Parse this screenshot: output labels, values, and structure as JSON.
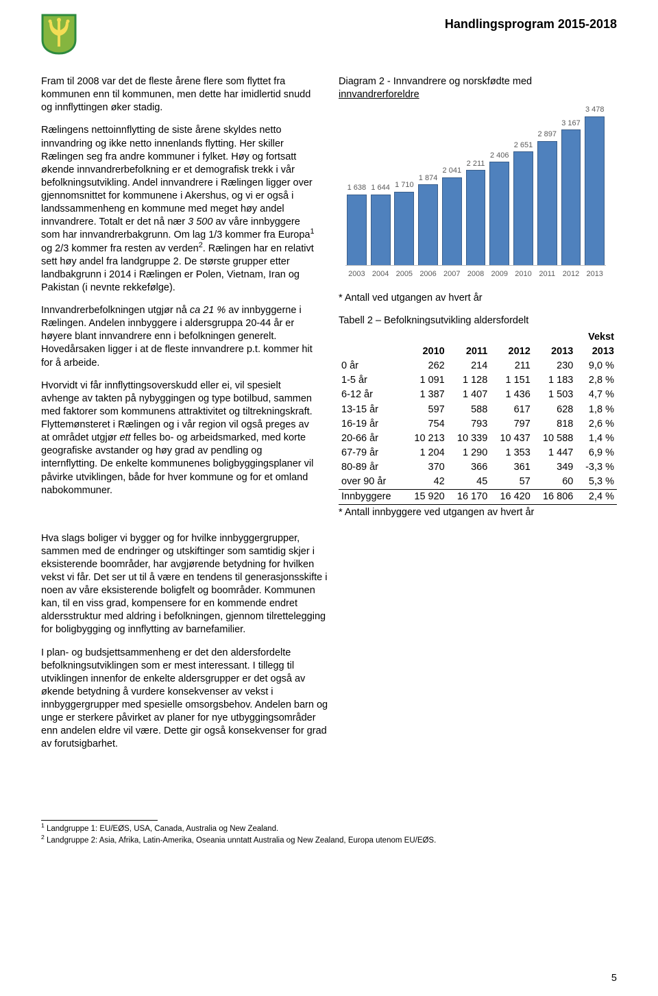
{
  "header": {
    "title": "Handlingsprogram 2015-2018"
  },
  "logo": {
    "shield_fill": "#85b53f",
    "shield_border": "#2c8a3e",
    "trident": "#f3dd55"
  },
  "left_paragraphs": [
    "Fram til 2008 var det de fleste årene flere som flyttet fra kommunen enn til kommunen, men dette har imidlertid snudd og innflyttingen øker stadig.",
    "Rælingens nettoinnflytting de siste årene skyldes netto innvandring og ikke netto innenlands flytting. Her skiller Rælingen seg fra andre kommuner i fylket. Høy og fortsatt økende innvandrerbefolkning er et demografisk trekk i vår befolkningsutvikling. Andel innvandrere i Rælingen ligger over gjennomsnittet for kommunene i Akershus, og vi er også i lands­sammenheng en kommune med meget høy andel innvandrere. Totalt er det nå nær <span class=\"ital\">3 500</span> av våre innbyggere som har innvandrerbakgrunn. Om lag 1/3 kommer fra Europa<span class=\"sup\">1</span> og 2/3 kommer fra resten av verden<span class=\"sup\">2</span>. Rælingen har en relativt sett høy andel fra landgruppe 2. De største grupper etter landbakgrunn i 2014 i Rælingen er Polen, Vietnam, Iran og Pakistan (i nevnte rekkefølge).",
    "Innvandrerbefolkningen utgjør nå <span class=\"ital\">ca 21 %</span> av innbyggerne i Rælingen. Andelen innbyggere i aldersgruppa 20-44 år er høyere blant innvandrere enn i befolkningen generelt. Hovedårsaken ligger i at de fleste innvandrere p.t. kommer hit for å arbeide.",
    "Hvorvidt vi får innflyttingsoverskudd eller ei, vil spesielt avhenge av takten på nybyggingen og type botilbud, sammen med faktorer som kommunens attraktivitet og tiltrekningskraft. Flyttemønsteret i Rælingen og i vår region vil også preges av at området utgjør <span class=\"ital\">ett</span> felles bo- og arbeidsmarked, med korte geografiske avstander og høy grad av pendling og internflytting. De enkelte kommunenes boligbyggingsplaner vil påvirke utviklingen, både for hver kommune og for et omland nabokommuner."
  ],
  "lower_paragraphs": [
    "Hva slags boliger vi bygger og for hvilke innbygger­grupper, sammen med de endringer og utskiftinger som samtidig skjer i eksisterende boområder, har avgjørende betydning for hvilken vekst vi får. Det ser ut til å være en tendens til generasjonsskifte i noen av våre eksisterende boligfelt og boområder. Kommunen kan, til en viss grad, kompensere for en kommende endret aldersstruktur med aldring i befolkningen, gjennom tilrettelegging for boligbygging og innflytting av barnefamilier.",
    "I plan- og budsjettsammenheng er det den alders­fordelte befolkningsutviklingen som er mest interessant. I tillegg til utviklingen innenfor de enkelte aldersgrupper er det også av økende betydning å vurdere konsekvenser av vekst i innbyggergrupper med spesielle omsorgsbehov. Andelen barn og unge er sterkere påvirket av planer for nye utbyggings­områder enn andelen eldre vil være. Dette gir også konsekvenser for grad av forutsigbarhet."
  ],
  "chart": {
    "type": "bar",
    "title_1": "Diagram 2 - Innvandrere og norskfødte med",
    "title_2": "innvandrerforeldre",
    "categories": [
      "2003",
      "2004",
      "2005",
      "2006",
      "2007",
      "2008",
      "2009",
      "2010",
      "2011",
      "2012",
      "2013"
    ],
    "values": [
      1638,
      1644,
      1710,
      1874,
      2041,
      2211,
      2406,
      2651,
      2897,
      3167,
      3478
    ],
    "bar_color": "#4f81bd",
    "bar_border": "#385d8a",
    "label_color": "#595959",
    "grid_color": "#bfbfbf",
    "background_color": "#ffffff",
    "ymax": 3800,
    "label_fontsize": 11,
    "footnote": "* Antall ved utgangen av hvert år"
  },
  "table2": {
    "title": "Tabell 2 – Befolkningsutvikling aldersfordelt",
    "head_growth": "Vekst",
    "columns": [
      "",
      "2010",
      "2011",
      "2012",
      "2013",
      "2013"
    ],
    "rows": [
      [
        "0 år",
        "262",
        "214",
        "211",
        "230",
        "9,0 %"
      ],
      [
        "1-5 år",
        "1 091",
        "1 128",
        "1 151",
        "1 183",
        "2,8 %"
      ],
      [
        "6-12 år",
        "1 387",
        "1 407",
        "1 436",
        "1 503",
        "4,7 %"
      ],
      [
        "13-15 år",
        "597",
        "588",
        "617",
        "628",
        "1,8 %"
      ],
      [
        "16-19 år",
        "754",
        "793",
        "797",
        "818",
        "2,6 %"
      ],
      [
        "20-66 år",
        "10 213",
        "10 339",
        "10 437",
        "10 588",
        "1,4 %"
      ],
      [
        "67-79 år",
        "1 204",
        "1 290",
        "1 353",
        "1 447",
        "6,9 %"
      ],
      [
        "80-89 år",
        "370",
        "366",
        "361",
        "349",
        "-3,3 %"
      ],
      [
        "over 90 år",
        "42",
        "45",
        "57",
        "60",
        "5,3 %"
      ]
    ],
    "total_row": [
      "Innbyggere",
      "15 920",
      "16 170",
      "16 420",
      "16 806",
      "2,4 %"
    ],
    "footnote": "* Antall innbyggere ved utgangen av hvert år"
  },
  "footnotes": {
    "f1": "Landgruppe 1: EU/EØS, USA, Canada, Australia og New Zealand.",
    "f2": "Landgruppe 2: Asia, Afrika, Latin-Amerika, Oseania unntatt Australia og New Zealand, Europa utenom EU/EØS."
  },
  "page_number": "5"
}
